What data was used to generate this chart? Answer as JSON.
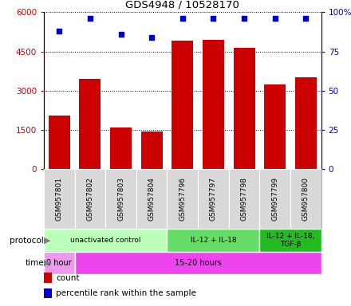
{
  "title": "GDS4948 / 10528170",
  "samples": [
    "GSM957801",
    "GSM957802",
    "GSM957803",
    "GSM957804",
    "GSM957796",
    "GSM957797",
    "GSM957798",
    "GSM957799",
    "GSM957800"
  ],
  "counts": [
    2050,
    3450,
    1600,
    1450,
    4900,
    4950,
    4650,
    3250,
    3500
  ],
  "percentile_ranks": [
    88,
    96,
    86,
    84,
    96,
    96,
    96,
    96,
    96
  ],
  "ylim_left": [
    0,
    6000
  ],
  "ylim_right": [
    0,
    100
  ],
  "yticks_left": [
    0,
    1500,
    3000,
    4500,
    6000
  ],
  "yticks_right": [
    0,
    25,
    50,
    75,
    100
  ],
  "bar_color": "#cc0000",
  "scatter_color": "#0000cc",
  "protocol_groups": [
    {
      "label": "unactivated control",
      "start": 0,
      "end": 4,
      "color": "#bbffbb"
    },
    {
      "label": "IL-12 + IL-18",
      "start": 4,
      "end": 7,
      "color": "#66dd66"
    },
    {
      "label": "IL-12 + IL-18,\nTGF-β",
      "start": 7,
      "end": 9,
      "color": "#22bb22"
    }
  ],
  "time_groups": [
    {
      "label": "0 hour",
      "start": 0,
      "end": 1,
      "color": "#ee99ee"
    },
    {
      "label": "15-20 hours",
      "start": 1,
      "end": 9,
      "color": "#ee44ee"
    }
  ],
  "legend_items": [
    {
      "color": "#cc0000",
      "label": "count"
    },
    {
      "color": "#0000cc",
      "label": "percentile rank within the sample"
    }
  ],
  "fig_width": 4.4,
  "fig_height": 3.84,
  "dpi": 100
}
